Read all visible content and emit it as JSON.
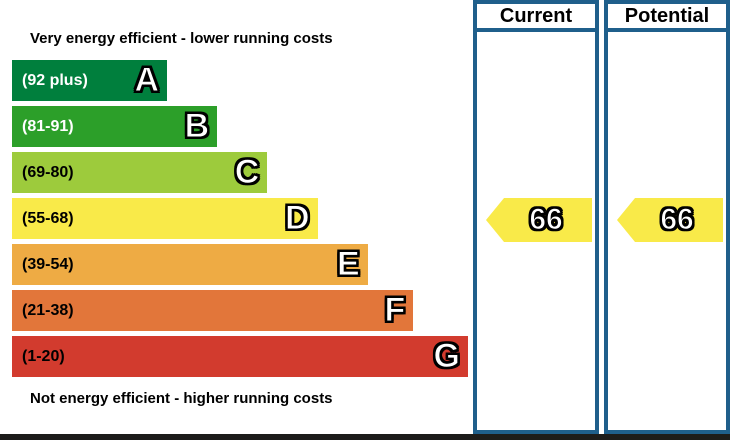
{
  "chart_data": {
    "type": "bar",
    "subtype": "epc-energy-efficiency-rating",
    "top_caption": "Very energy efficient - lower running costs",
    "bottom_caption": "Not energy efficient - higher running costs",
    "columns": [
      {
        "label": "Current",
        "value": 66,
        "band": "D"
      },
      {
        "label": "Potential",
        "value": 66,
        "band": "D"
      }
    ],
    "bands": [
      {
        "letter": "A",
        "range": "(92 plus)",
        "color": "#007f3d",
        "text_color": "#ffffff",
        "width": "34%"
      },
      {
        "letter": "B",
        "range": "(81-91)",
        "color": "#2c9f29",
        "text_color": "#ffffff",
        "width": "45%"
      },
      {
        "letter": "C",
        "range": "(69-80)",
        "color": "#9dcb3c",
        "text_color": "#000000",
        "width": "56%"
      },
      {
        "letter": "D",
        "range": "(55-68)",
        "color": "#f9ea49",
        "text_color": "#000000",
        "width": "67%"
      },
      {
        "letter": "E",
        "range": "(39-54)",
        "color": "#eeab44",
        "text_color": "#000000",
        "width": "78%"
      },
      {
        "letter": "F",
        "range": "(21-38)",
        "color": "#e2763a",
        "text_color": "#000000",
        "width": "88%"
      },
      {
        "letter": "G",
        "range": "(1-20)",
        "color": "#d23b2e",
        "text_color": "#000000",
        "width": "100%"
      }
    ],
    "arrow_color": "#f9ea49",
    "border_color": "#1f5f8b",
    "bottom_rule_color": "#1d1c1a"
  }
}
